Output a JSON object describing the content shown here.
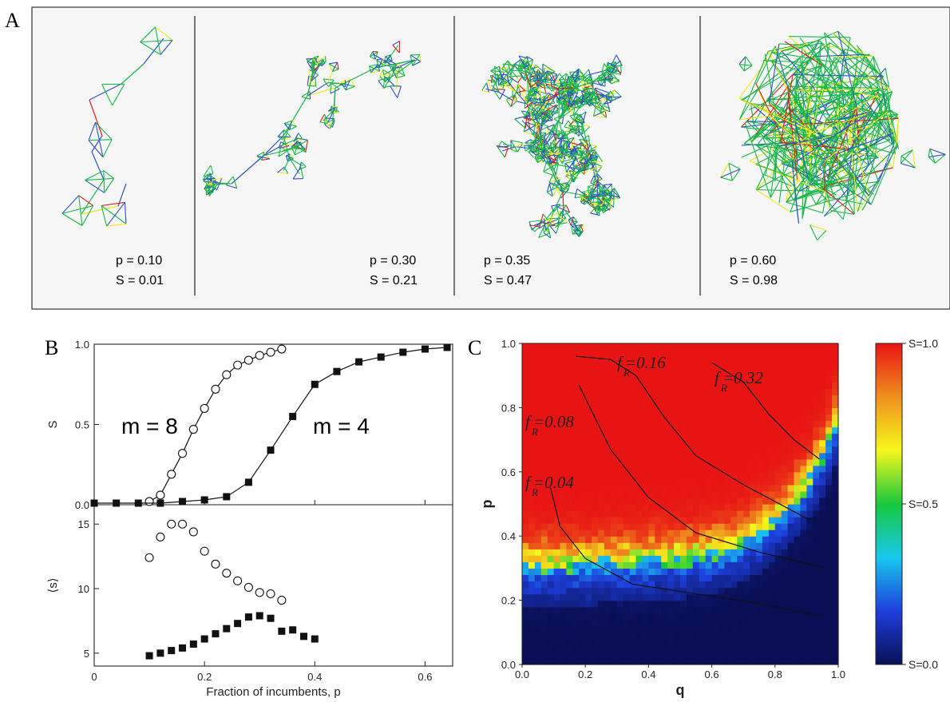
{
  "panel_labels": [
    "A",
    "B",
    "C"
  ],
  "network_panels": [
    {
      "p_text": "p = 0.10",
      "s_text": "S = 0.01"
    },
    {
      "p_text": "p = 0.30",
      "s_text": "S = 0.21"
    },
    {
      "p_text": "p = 0.35",
      "s_text": "S = 0.47"
    },
    {
      "p_text": "p = 0.60",
      "s_text": "S = 0.98"
    }
  ],
  "chart_data": [
    {
      "type": "line",
      "panel": "B-top",
      "ylabel": "S",
      "xlim": [
        0,
        0.65
      ],
      "ylim": [
        0,
        1.0
      ],
      "yticks": [
        "0.0",
        "0.5",
        "1.0"
      ],
      "series": [
        {
          "name": "m = 8",
          "marker": "open-circle",
          "x": [
            0.1,
            0.12,
            0.14,
            0.16,
            0.18,
            0.2,
            0.22,
            0.24,
            0.26,
            0.28,
            0.3,
            0.32,
            0.34
          ],
          "y": [
            0.02,
            0.06,
            0.19,
            0.32,
            0.47,
            0.6,
            0.72,
            0.81,
            0.87,
            0.9,
            0.93,
            0.95,
            0.97
          ]
        },
        {
          "name": "m = 4",
          "marker": "filled-square",
          "x": [
            0.0,
            0.04,
            0.08,
            0.12,
            0.16,
            0.2,
            0.24,
            0.28,
            0.32,
            0.36,
            0.4,
            0.44,
            0.48,
            0.52,
            0.56,
            0.6,
            0.64
          ],
          "y": [
            0.01,
            0.01,
            0.01,
            0.01,
            0.02,
            0.03,
            0.05,
            0.14,
            0.34,
            0.55,
            0.75,
            0.83,
            0.89,
            0.92,
            0.95,
            0.97,
            0.98
          ]
        }
      ]
    },
    {
      "type": "scatter",
      "panel": "B-bottom",
      "xlabel": "Fraction of incumbents, p",
      "ylabel": "⟨s⟩",
      "xlim": [
        0,
        0.65
      ],
      "ylim": [
        4,
        16.5
      ],
      "xticks": [
        "0",
        "0.2",
        "0.4",
        "0.6"
      ],
      "yticks": [
        "5",
        "10",
        "15"
      ],
      "series": [
        {
          "marker": "open-circle",
          "x": [
            0.1,
            0.12,
            0.14,
            0.16,
            0.18,
            0.2,
            0.22,
            0.24,
            0.26,
            0.28,
            0.3,
            0.32,
            0.34
          ],
          "y": [
            12.4,
            14.0,
            15.0,
            15.0,
            14.4,
            12.9,
            11.9,
            11.2,
            10.6,
            10.1,
            9.7,
            9.6,
            9.1
          ]
        },
        {
          "marker": "filled-square",
          "x": [
            0.1,
            0.12,
            0.14,
            0.16,
            0.18,
            0.2,
            0.22,
            0.24,
            0.26,
            0.28,
            0.3,
            0.32,
            0.34,
            0.36,
            0.38,
            0.4
          ],
          "y": [
            4.8,
            5.0,
            5.2,
            5.4,
            5.7,
            6.1,
            6.5,
            6.9,
            7.3,
            7.8,
            7.9,
            7.7,
            6.7,
            6.8,
            6.3,
            6.1
          ]
        }
      ]
    },
    {
      "type": "heatmap",
      "panel": "C",
      "xlabel": "q",
      "ylabel": "p",
      "xlim": [
        0,
        1
      ],
      "ylim": [
        0,
        1
      ],
      "xticks": [
        "0.0",
        "0.2",
        "0.4",
        "0.6",
        "0.8",
        "1.0"
      ],
      "yticks": [
        "0.0",
        "0.2",
        "0.4",
        "0.6",
        "0.8",
        "1.0"
      ],
      "colorbar": {
        "ticks": [
          "S=1.0",
          "S=0.5",
          "S=0.0"
        ],
        "range": [
          0,
          1
        ],
        "colors": [
          "#0a0f55",
          "#1e3fdc",
          "#18c8ee",
          "#18c83c",
          "#f6f81c",
          "#f0901e",
          "#e81414"
        ]
      },
      "contours": [
        {
          "label_main": "f",
          "label_sub": "R",
          "label_value": "=0.04",
          "points": [
            [
              0.09,
              0.55
            ],
            [
              0.12,
              0.43
            ],
            [
              0.2,
              0.33
            ],
            [
              0.35,
              0.25
            ],
            [
              0.55,
              0.22
            ],
            [
              0.75,
              0.19
            ],
            [
              0.95,
              0.15
            ]
          ]
        },
        {
          "label_main": "f",
          "label_sub": "R",
          "label_value": "=0.08",
          "points": [
            [
              0.18,
              0.87
            ],
            [
              0.28,
              0.67
            ],
            [
              0.4,
              0.52
            ],
            [
              0.55,
              0.41
            ],
            [
              0.75,
              0.35
            ],
            [
              0.96,
              0.3
            ]
          ]
        },
        {
          "label_main": "f",
          "label_sub": "R",
          "label_value": "=0.16",
          "points": [
            [
              0.17,
              0.96
            ],
            [
              0.28,
              0.95
            ],
            [
              0.36,
              0.9
            ],
            [
              0.45,
              0.77
            ],
            [
              0.55,
              0.65
            ],
            [
              0.7,
              0.56
            ],
            [
              0.91,
              0.45
            ]
          ]
        },
        {
          "label_main": "f",
          "label_sub": "R",
          "label_value": "=0.32",
          "points": [
            [
              0.6,
              0.94
            ],
            [
              0.7,
              0.88
            ],
            [
              0.78,
              0.78
            ],
            [
              0.86,
              0.7
            ],
            [
              0.94,
              0.64
            ]
          ]
        }
      ]
    }
  ]
}
